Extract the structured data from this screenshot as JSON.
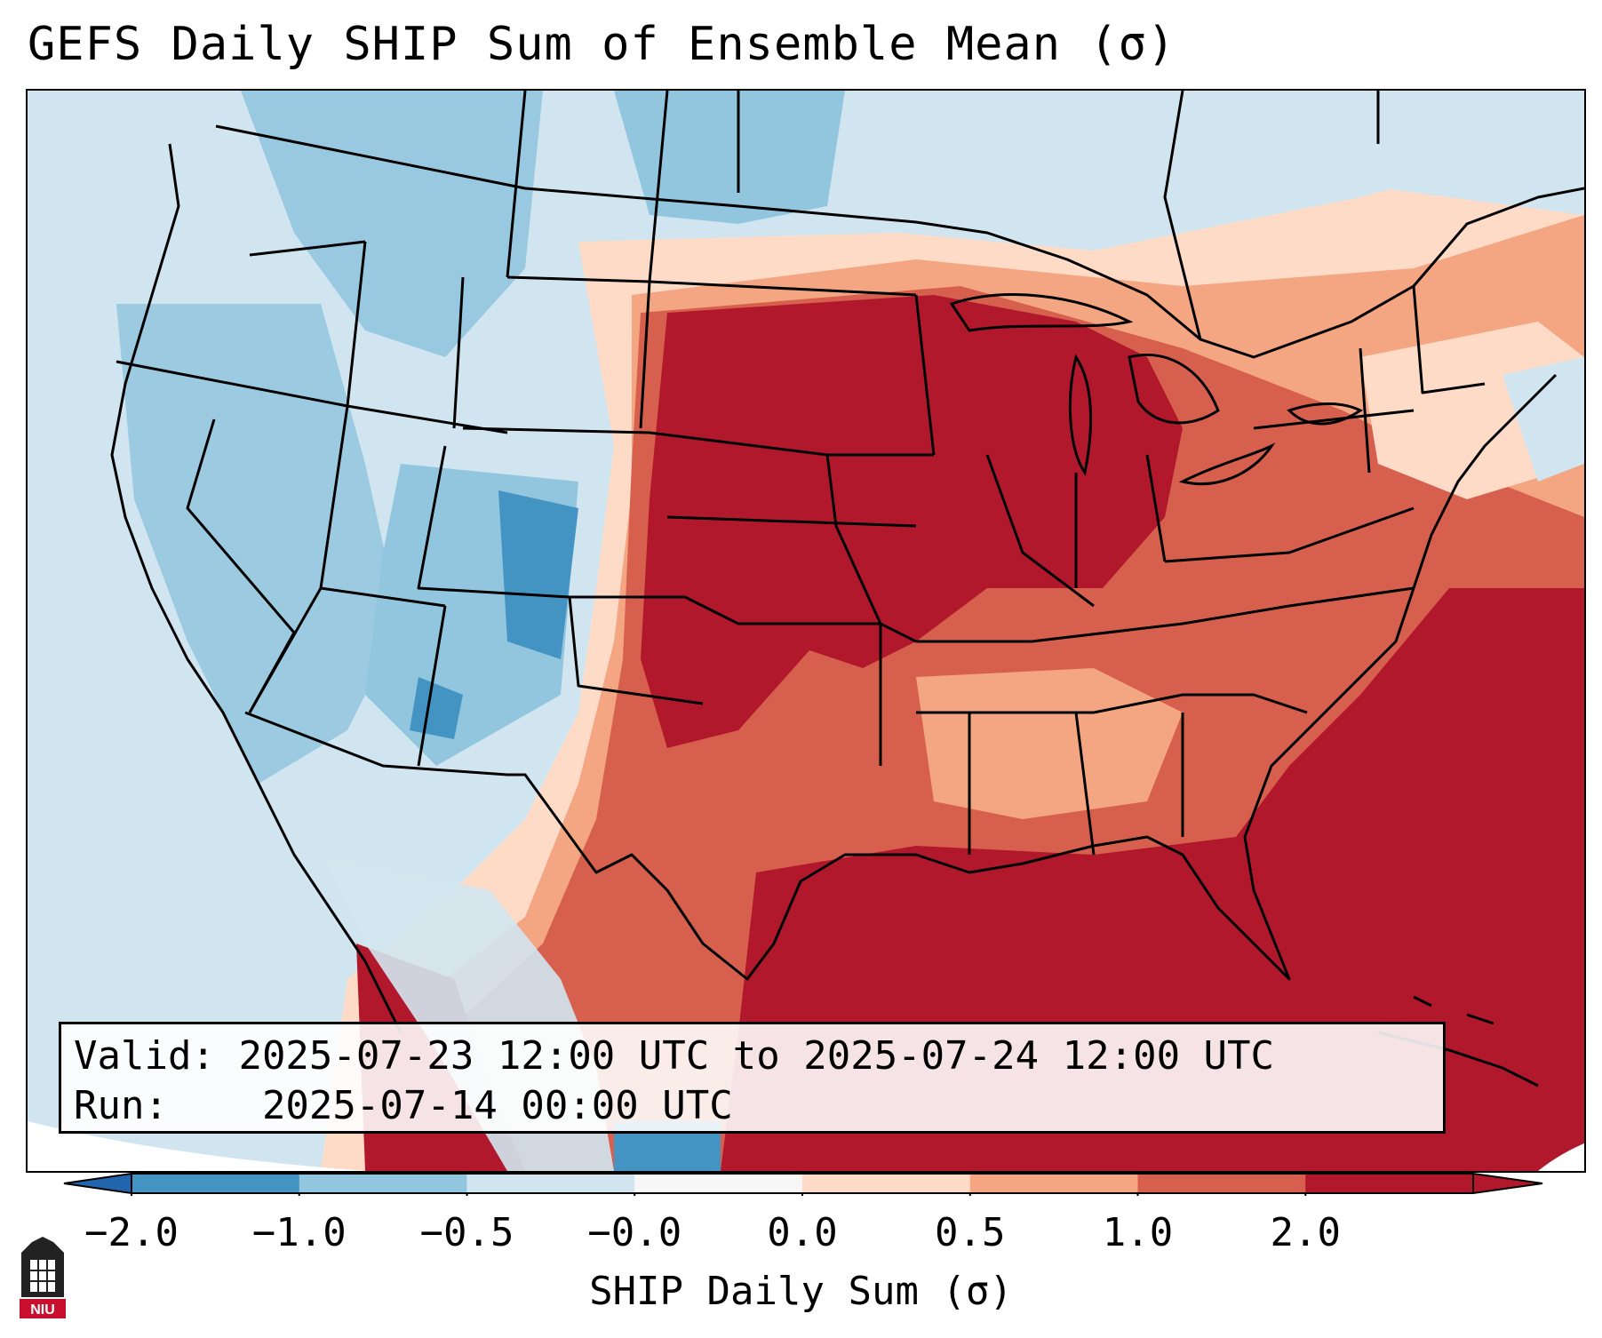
{
  "title": "GEFS Daily SHIP Sum of Ensemble Mean (σ)",
  "info": {
    "valid_label": "Valid:",
    "valid_value": "2025-07-23 12:00 UTC to 2025-07-24 12:00 UTC",
    "run_label": "Run:",
    "run_value": "2025-07-14 00:00 UTC"
  },
  "colorbar": {
    "label": "SHIP Daily Sum (σ)",
    "ticks": [
      "−2.0",
      "−1.0",
      "−0.5",
      "−0.0",
      "0.0",
      "0.5",
      "1.0",
      "2.0"
    ],
    "colors": [
      "#4393c3",
      "#92c5de",
      "#d1e5f0",
      "#f7f7f7",
      "#fddbc7",
      "#f4a582",
      "#d6604d",
      "#b2182b"
    ],
    "under_color": "#2166ac",
    "over_color": "#b2182b"
  },
  "logo_text": "NIU"
}
